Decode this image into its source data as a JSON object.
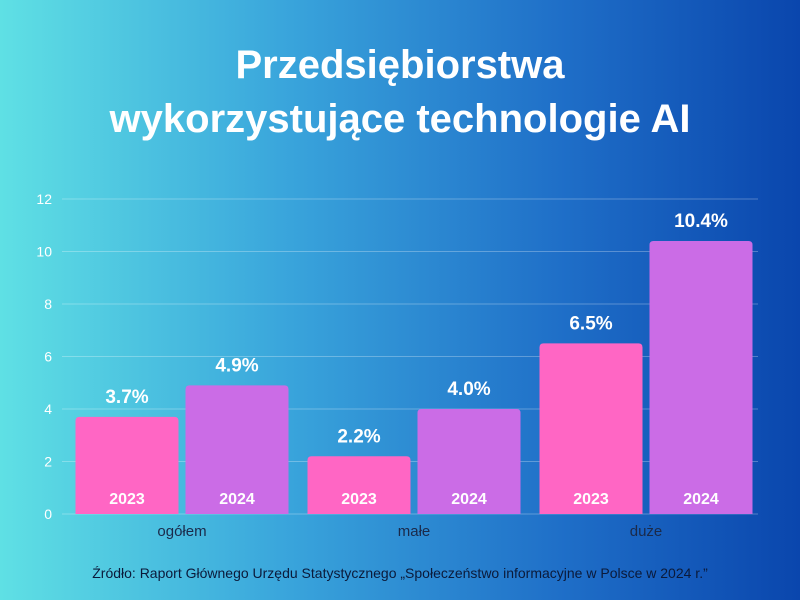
{
  "title": {
    "line1": "Przedsiębiorstwa",
    "line2": "wykorzystujące technologie AI"
  },
  "source": "Źródło: Raport Głównego Urzędu Statystycznego „Społeczeństwo informacyjne w Polsce w 2024 r.”",
  "colors": {
    "series_2023": "#ff66c4",
    "series_2024": "#cb6ce6",
    "text_light": "#ffffff",
    "tick_text": "#ffffff",
    "category_text": "#1b2a4a"
  },
  "chart_data": {
    "type": "bar",
    "categories": [
      "ogółem",
      "małe",
      "duże"
    ],
    "series": [
      {
        "name": "2023",
        "values": [
          3.7,
          2.2,
          6.5
        ],
        "labels": [
          "3.7%",
          "2.2%",
          "6.5%"
        ]
      },
      {
        "name": "2024",
        "values": [
          4.9,
          4.0,
          10.4
        ],
        "labels": [
          "4.9%",
          "4.0%",
          "10.4%"
        ]
      }
    ],
    "ylim": [
      0,
      12
    ],
    "yticks": [
      0,
      2,
      4,
      6,
      8,
      10,
      12
    ],
    "grid": true,
    "xlabel": "",
    "ylabel": ""
  }
}
